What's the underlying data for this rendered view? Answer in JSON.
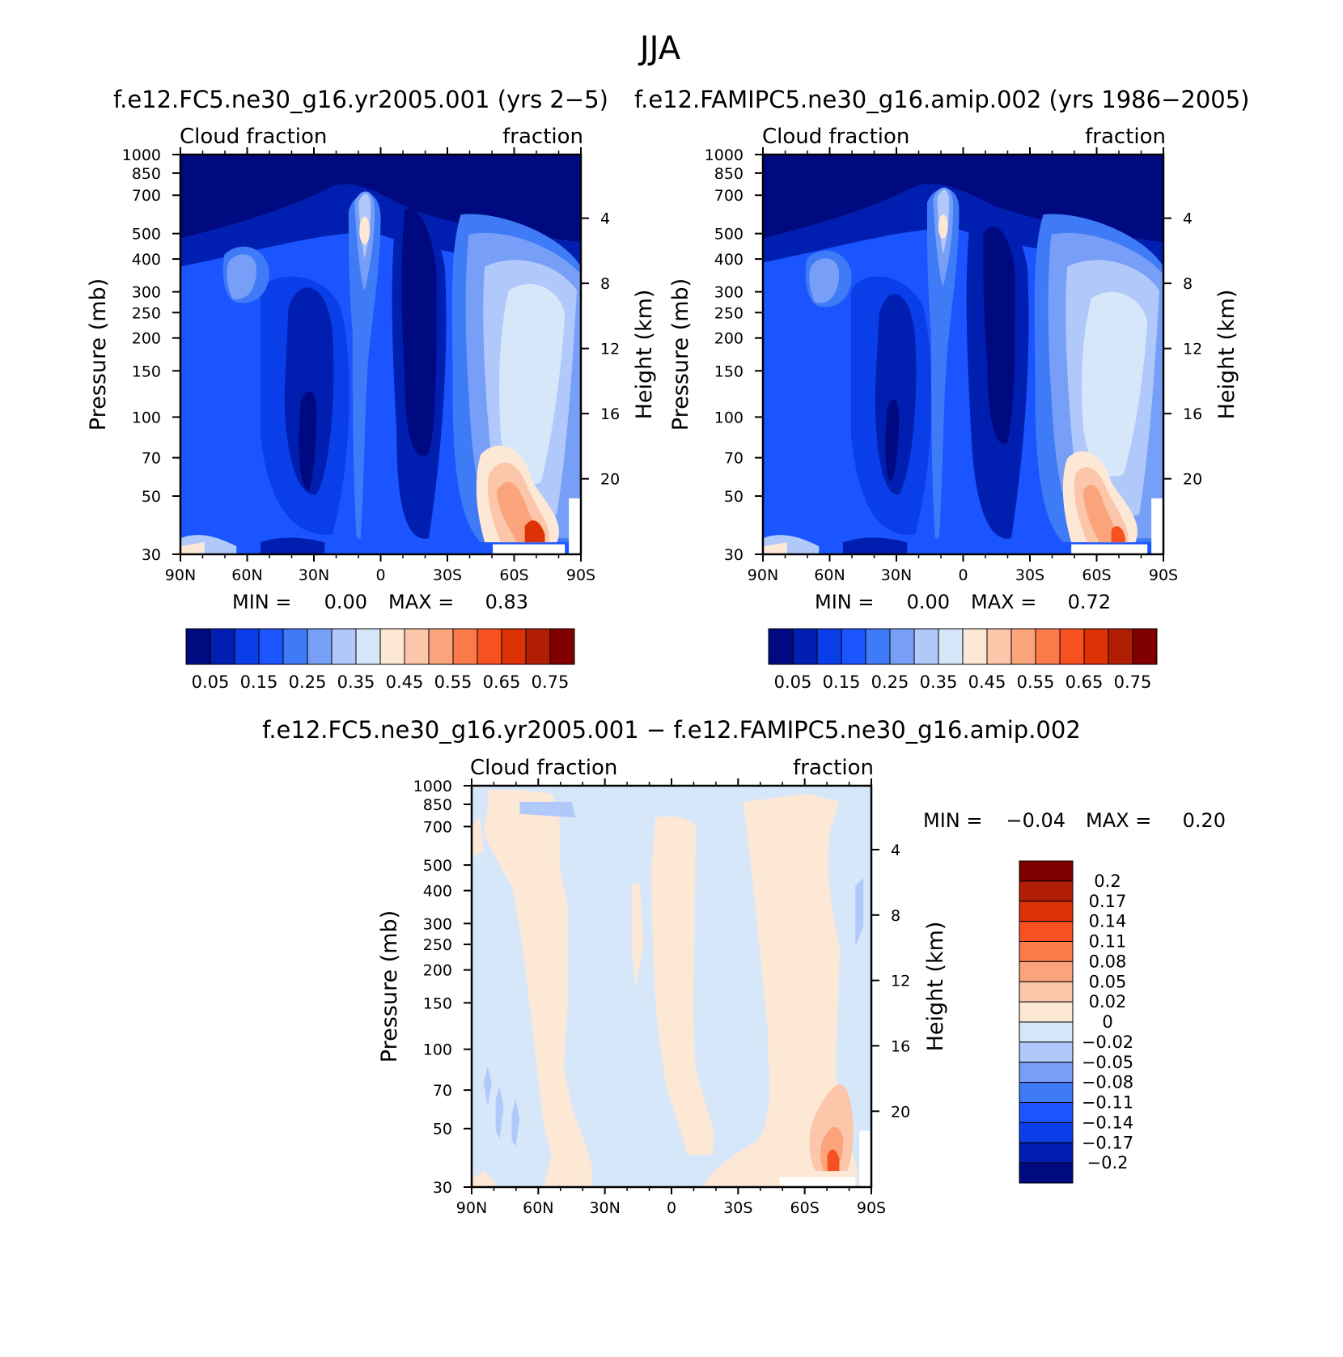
{
  "figure_title": "JJA",
  "chart_data": [
    {
      "type": "heatmap",
      "title": "f.e12.FC5.ne30_g16.yr2005.001 (yrs 2-5)",
      "left_string": "Cloud fraction",
      "right_string": "fraction",
      "ylabel": "Pressure (mb)",
      "ylabel_right": "Height (km)",
      "x_tick_labels": [
        "90N",
        "60N",
        "30N",
        "0",
        "30S",
        "60S",
        "90S"
      ],
      "y_tick_labels": [
        "30",
        "50",
        "70",
        "100",
        "150",
        "200",
        "250",
        "300",
        "400",
        "500",
        "700",
        "850",
        "1000"
      ],
      "y_right_tick_labels": [
        "20",
        "16",
        "12",
        "8",
        "4"
      ],
      "ylim": [
        1000,
        30
      ],
      "xlim": [
        "90N",
        "90S"
      ],
      "min_label": "MIN =",
      "min_value": "0.00",
      "max_label": "MAX =",
      "max_value": "0.83",
      "colorbar_labels": [
        "0.05",
        "0.15",
        "0.25",
        "0.35",
        "0.45",
        "0.55",
        "0.65",
        "0.75"
      ],
      "colorbar_colors": [
        "#000a80",
        "#001fb0",
        "#0a3ee8",
        "#1a55ff",
        "#3f7bf7",
        "#779ff7",
        "#b1c9fa",
        "#d7e7fa",
        "#fde8d6",
        "#fcc6ab",
        "#fba47c",
        "#fb7a4a",
        "#f75122",
        "#dd3106",
        "#b01f04",
        "#800000"
      ]
    },
    {
      "type": "heatmap",
      "title": "f.e12.FAMIPC5.ne30_g16.amip.002 (yrs 1986-2005)",
      "left_string": "Cloud fraction",
      "right_string": "fraction",
      "ylabel": "Pressure (mb)",
      "ylabel_right": "Height (km)",
      "x_tick_labels": [
        "90N",
        "60N",
        "30N",
        "0",
        "30S",
        "60S",
        "90S"
      ],
      "y_tick_labels": [
        "30",
        "50",
        "70",
        "100",
        "150",
        "200",
        "250",
        "300",
        "400",
        "500",
        "700",
        "850",
        "1000"
      ],
      "y_right_tick_labels": [
        "20",
        "16",
        "12",
        "8",
        "4"
      ],
      "ylim": [
        1000,
        30
      ],
      "xlim": [
        "90N",
        "90S"
      ],
      "min_label": "MIN =",
      "min_value": "0.00",
      "max_label": "MAX =",
      "max_value": "0.72",
      "colorbar_labels": [
        "0.05",
        "0.15",
        "0.25",
        "0.35",
        "0.45",
        "0.55",
        "0.65",
        "0.75"
      ],
      "colorbar_colors": [
        "#000a80",
        "#001fb0",
        "#0a3ee8",
        "#1a55ff",
        "#3f7bf7",
        "#779ff7",
        "#b1c9fa",
        "#d7e7fa",
        "#fde8d6",
        "#fcc6ab",
        "#fba47c",
        "#fb7a4a",
        "#f75122",
        "#dd3106",
        "#b01f04",
        "#800000"
      ]
    },
    {
      "type": "heatmap",
      "title": "f.e12.FC5.ne30_g16.yr2005.001 - f.e12.FAMIPC5.ne30_g16.amip.002",
      "left_string": "Cloud fraction",
      "right_string": "fraction",
      "ylabel": "Pressure (mb)",
      "ylabel_right": "Height (km)",
      "x_tick_labels": [
        "90N",
        "60N",
        "30N",
        "0",
        "30S",
        "60S",
        "90S"
      ],
      "y_tick_labels": [
        "30",
        "50",
        "70",
        "100",
        "150",
        "200",
        "250",
        "300",
        "400",
        "500",
        "700",
        "850",
        "1000"
      ],
      "y_right_tick_labels": [
        "20",
        "16",
        "12",
        "8",
        "4"
      ],
      "ylim": [
        1000,
        30
      ],
      "xlim": [
        "90N",
        "90S"
      ],
      "min_label": "MIN =",
      "min_value": "-0.04",
      "max_label": "MAX =",
      "max_value": "0.20",
      "colorbar_labels": [
        "0.2",
        "0.17",
        "0.14",
        "0.11",
        "0.08",
        "0.05",
        "0.02",
        "0",
        "-0.02",
        "-0.05",
        "-0.08",
        "-0.11",
        "-0.14",
        "-0.17",
        "-0.2"
      ],
      "colorbar_colors": [
        "#800000",
        "#b01f04",
        "#dd3106",
        "#f75122",
        "#fb7a4a",
        "#fba47c",
        "#fcc6ab",
        "#fde8d6",
        "#d7e7fa",
        "#b1c9fa",
        "#779ff7",
        "#3f7bf7",
        "#1a55ff",
        "#0a3ee8",
        "#001fb0",
        "#000a80"
      ]
    }
  ]
}
